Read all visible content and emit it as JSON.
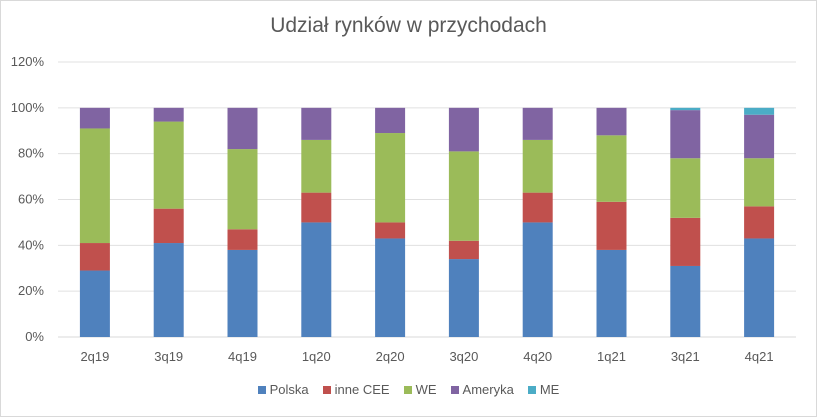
{
  "chart_data": {
    "type": "bar",
    "stacked": true,
    "title": "Udział rynków w przychodach",
    "categories": [
      "2q19",
      "3q19",
      "4q19",
      "1q20",
      "2q20",
      "3q20",
      "4q20",
      "1q21",
      "3q21",
      "4q21"
    ],
    "series": [
      {
        "name": "Polska",
        "color": "#4F81BD",
        "values": [
          29,
          41,
          38,
          50,
          43,
          34,
          50,
          38,
          31,
          43
        ]
      },
      {
        "name": "inne CEE",
        "color": "#C0504D",
        "values": [
          12,
          15,
          9,
          13,
          7,
          8,
          13,
          21,
          21,
          14
        ]
      },
      {
        "name": "WE",
        "color": "#9BBB59",
        "values": [
          50,
          38,
          35,
          23,
          39,
          39,
          23,
          29,
          26,
          21
        ]
      },
      {
        "name": "Ameryka",
        "color": "#8064A2",
        "values": [
          9,
          6,
          18,
          14,
          11,
          19,
          14,
          12,
          21,
          19
        ]
      },
      {
        "name": "ME",
        "color": "#4BACC6",
        "values": [
          0,
          0,
          0,
          0,
          0,
          0,
          0,
          0,
          1,
          3
        ]
      }
    ],
    "ylim": [
      0,
      120
    ],
    "yticks": [
      "0%",
      "20%",
      "40%",
      "60%",
      "80%",
      "100%",
      "120%"
    ],
    "grid": true,
    "legend_position": "bottom"
  }
}
